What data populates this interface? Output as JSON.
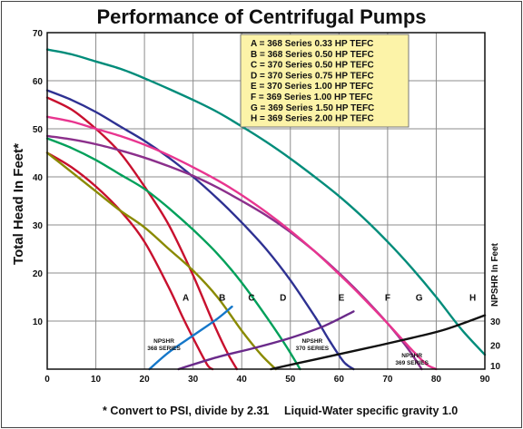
{
  "chart_data": {
    "type": "line",
    "title": "Performance of Centrifugal Pumps",
    "ylabel": "Total Head In Feet*",
    "y2label": "NPSHR In Feet",
    "xlim": [
      0,
      90
    ],
    "ylim": [
      0,
      70
    ],
    "x_ticks": [
      "0",
      "10",
      "20",
      "30",
      "40",
      "50",
      "60",
      "70",
      "80",
      "90"
    ],
    "y_ticks": [
      "10",
      "20",
      "30",
      "40",
      "50",
      "60",
      "70"
    ],
    "y2_ticks": [
      {
        "label": "10",
        "at": 0
      },
      {
        "label": "20",
        "at": 5
      },
      {
        "label": "30",
        "at": 10
      }
    ],
    "grid": true,
    "legend_position": "top-right",
    "legend": [
      "A = 368 Series 0.33 HP TEFC",
      "B = 368 Series 0.50 HP TEFC",
      "C = 370 Series 0.50 HP TEFC",
      "D = 370 Series 0.75 HP TEFC",
      "E = 370 Series 1.00 HP TEFC",
      "F = 369 Series 1.00 HP TEFC",
      "G = 369 Series 1.50 HP TEFC",
      "H = 369 Series 2.00 HP TEFC"
    ],
    "series": [
      {
        "name": "A",
        "color": "#c8102e",
        "x": [
          0,
          5,
          10,
          15,
          20,
          25,
          28,
          31,
          33,
          34
        ],
        "y": [
          45,
          42,
          38,
          33,
          26.5,
          17,
          10.5,
          4.5,
          0.8,
          0
        ]
      },
      {
        "name": "B",
        "color": "#c8102e",
        "x": [
          0,
          5,
          10,
          15,
          20,
          25,
          30,
          34,
          37,
          39
        ],
        "y": [
          56.5,
          54,
          50,
          45,
          38,
          30,
          19.5,
          10,
          3.5,
          0
        ]
      },
      {
        "name": "C",
        "color": "#8a8a00",
        "x": [
          0,
          5,
          10,
          15,
          20,
          25,
          30,
          35,
          40,
          44,
          47
        ],
        "y": [
          45,
          41,
          37,
          33,
          29.5,
          25,
          20.5,
          15,
          8,
          3,
          0
        ]
      },
      {
        "name": "D",
        "color": "#00a05a",
        "x": [
          0,
          5,
          10,
          15,
          20,
          25,
          30,
          35,
          40,
          45,
          49,
          52
        ],
        "y": [
          48,
          46,
          43.5,
          40.5,
          37.5,
          33.5,
          29,
          24,
          18,
          11,
          5,
          0
        ]
      },
      {
        "name": "E",
        "color": "#2e3192",
        "x": [
          0,
          5,
          10,
          15,
          20,
          25,
          30,
          35,
          40,
          45,
          50,
          55,
          58,
          61,
          63
        ],
        "y": [
          58,
          56,
          53.5,
          50.5,
          47.5,
          44,
          40,
          35.5,
          30.5,
          25,
          18.5,
          11,
          6,
          1.5,
          0
        ]
      },
      {
        "name": "F",
        "color": "#8b2f8b",
        "x": [
          0,
          5,
          10,
          15,
          20,
          25,
          30,
          35,
          40,
          45,
          50,
          55,
          60,
          65,
          70,
          74,
          77
        ],
        "y": [
          48.5,
          47.8,
          46.8,
          45.5,
          44,
          42.2,
          40.2,
          37.8,
          35,
          32,
          28.5,
          24.5,
          20,
          15,
          9.5,
          4.5,
          0
        ]
      },
      {
        "name": "G",
        "color": "#e8358f",
        "x": [
          0,
          5,
          10,
          15,
          20,
          25,
          30,
          35,
          40,
          45,
          50,
          55,
          60,
          65,
          70,
          75,
          78,
          80
        ],
        "y": [
          52.5,
          51.5,
          50,
          48.5,
          46.7,
          44.5,
          42,
          39.3,
          36.2,
          32.7,
          28.8,
          24.5,
          19.8,
          14.8,
          9.5,
          4,
          1,
          0
        ]
      },
      {
        "name": "H",
        "color": "#008c7a",
        "x": [
          0,
          5,
          10,
          15,
          20,
          25,
          30,
          35,
          40,
          45,
          50,
          55,
          60,
          65,
          70,
          75,
          80,
          85,
          90
        ],
        "y": [
          66.5,
          65.5,
          64,
          62.5,
          60.5,
          58.3,
          56,
          53.5,
          50.5,
          47.3,
          43.8,
          40,
          36,
          31.5,
          26.5,
          21,
          15,
          8.5,
          3
        ]
      }
    ],
    "npshr_series": [
      {
        "name": "NPSHR 368 SERIES",
        "color": "#1577c9",
        "x": [
          21,
          25,
          30,
          35,
          38
        ],
        "y": [
          0,
          3.5,
          7,
          10.5,
          13
        ]
      },
      {
        "name": "NPSHR 370 SERIES",
        "color": "#6a2a8a",
        "x": [
          27,
          35,
          43,
          50,
          57,
          63
        ],
        "y": [
          0,
          2.5,
          4.5,
          6.5,
          9,
          12
        ]
      },
      {
        "name": "NPSHR 369 SERIES",
        "color": "#111111",
        "x": [
          46,
          55,
          65,
          75,
          82,
          90
        ],
        "y": [
          0,
          2,
          4.2,
          6.5,
          8.3,
          11.2
        ]
      }
    ],
    "curve_labels": [
      {
        "text": "A",
        "x": 28.5,
        "y": 15
      },
      {
        "text": "B",
        "x": 36,
        "y": 15
      },
      {
        "text": "C",
        "x": 42,
        "y": 15
      },
      {
        "text": "D",
        "x": 48.5,
        "y": 15
      },
      {
        "text": "E",
        "x": 60.5,
        "y": 15
      },
      {
        "text": "F",
        "x": 70,
        "y": 15
      },
      {
        "text": "G",
        "x": 76.5,
        "y": 15
      },
      {
        "text": "H",
        "x": 87.5,
        "y": 15
      }
    ],
    "npshr_labels": [
      {
        "lines": [
          "NPSHR",
          "368 SERIES"
        ],
        "x": 24,
        "y": 5.5
      },
      {
        "lines": [
          "NPSHR",
          "370 SERIES"
        ],
        "x": 54.5,
        "y": 5.5
      },
      {
        "lines": [
          "NPSHR",
          "369 SERIES"
        ],
        "x": 75,
        "y": 2.5
      }
    ],
    "footnote_left": "* Convert to PSI, divide by 2.31",
    "footnote_right": "Liquid-Water specific gravity 1.0",
    "colors": {
      "legend_bg": "#fcf3a8",
      "grid": "#8c8c8c"
    }
  }
}
